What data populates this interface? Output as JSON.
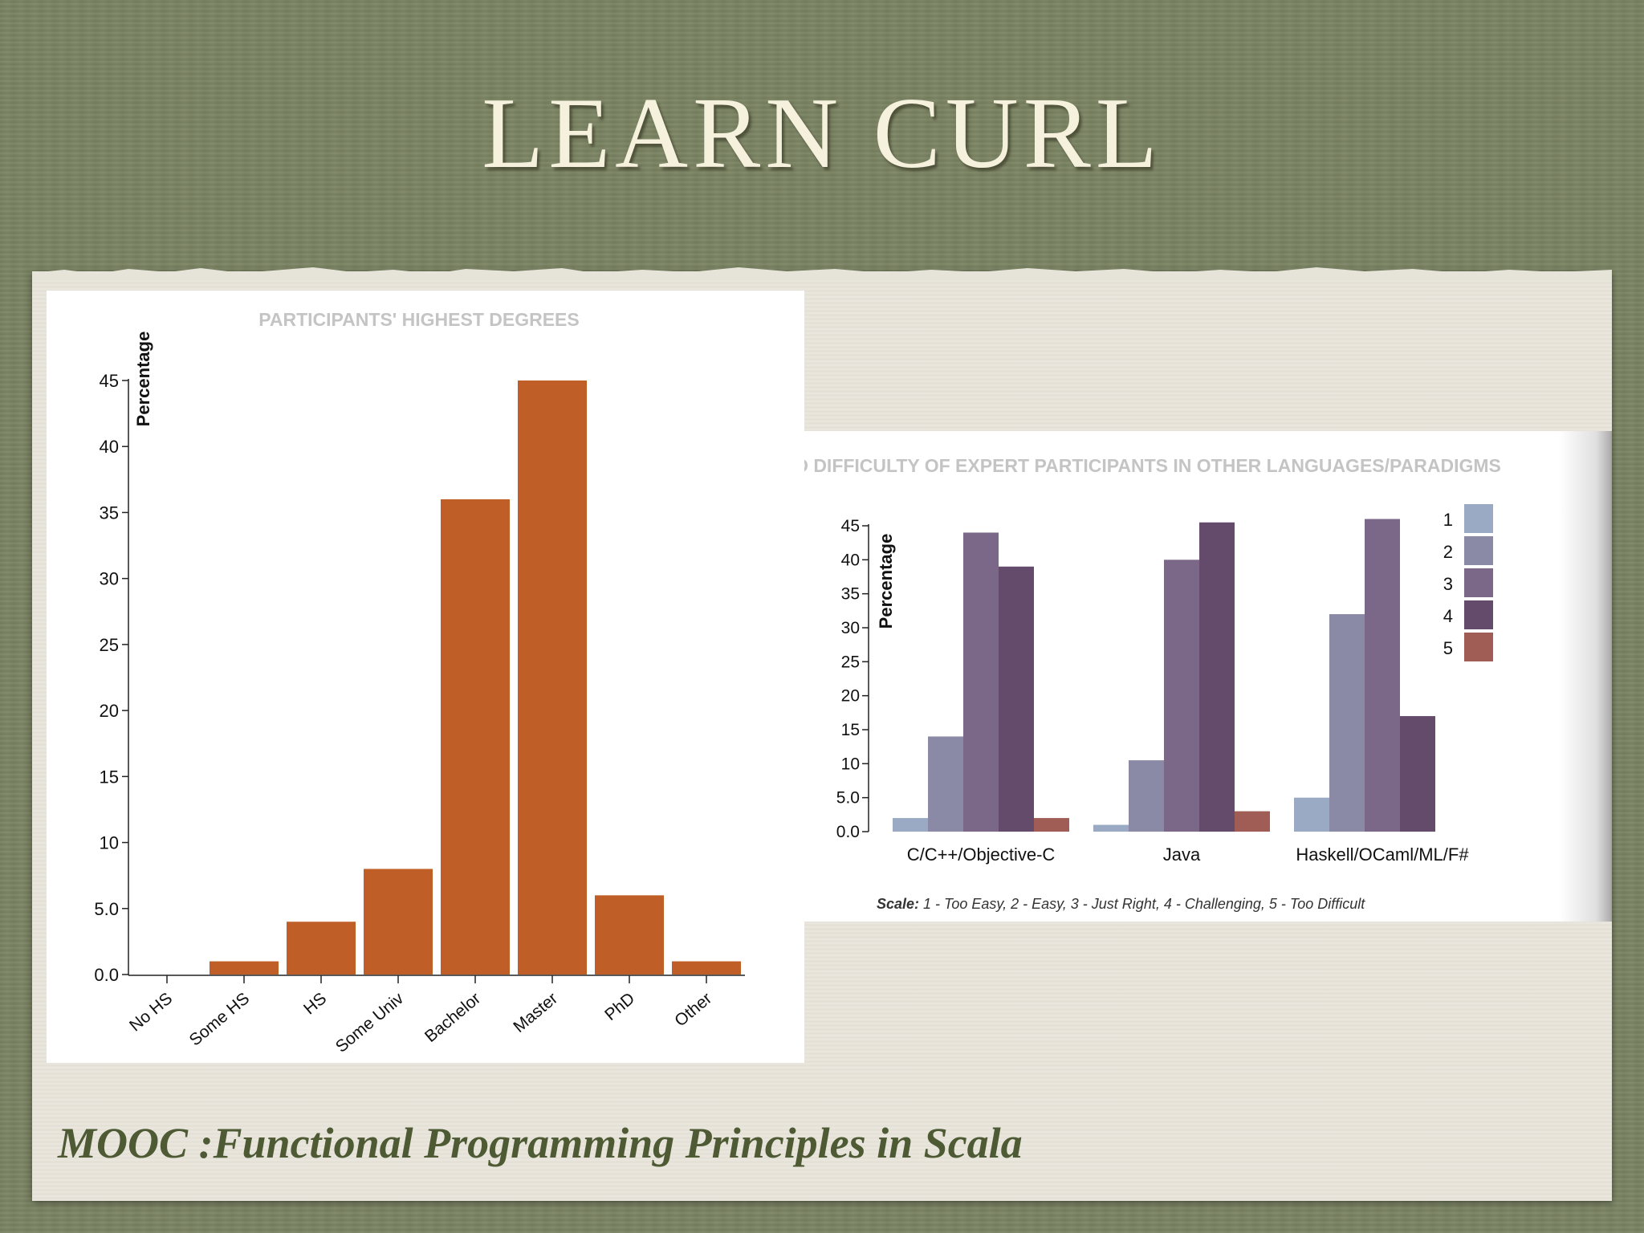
{
  "slide": {
    "title": "LEARN CURL",
    "caption": "MOOC :Functional Programming Principles in Scala"
  },
  "colors": {
    "background": "#7b8463",
    "paper": "#e6e3d9",
    "title_text": "#f5f1dd",
    "caption_text": "#4d5a34",
    "bar_orange": "#c05e28"
  },
  "chart_data": [
    {
      "type": "bar",
      "title": "PARTICIPANTS' HIGHEST DEGREES",
      "xlabel": "",
      "ylabel": "Percentage",
      "categories": [
        "No HS",
        "Some HS",
        "HS",
        "Some Univ",
        "Bachelor",
        "Master",
        "PhD",
        "Other"
      ],
      "values": [
        0,
        1,
        4,
        8,
        36,
        45,
        6,
        1
      ],
      "ylim": [
        0,
        45
      ],
      "yticks": [
        "0.0",
        "5.0",
        "10",
        "15",
        "20",
        "25",
        "30",
        "35",
        "40",
        "45"
      ],
      "color": "#c05e28",
      "grid": false
    },
    {
      "type": "bar",
      "title": "PERCEIVED DIFFICULTY OF EXPERT PARTICIPANTS IN OTHER LANGUAGES/PARADIGMS",
      "xlabel": "",
      "ylabel": "Percentage",
      "categories": [
        "C/C++/Objective-C",
        "Java",
        "Haskell/OCaml/ML/F#"
      ],
      "series": [
        {
          "name": "1",
          "color": "#9aaac4",
          "values": [
            2,
            1,
            5
          ]
        },
        {
          "name": "2",
          "color": "#8a89a6",
          "values": [
            14,
            10.5,
            32
          ]
        },
        {
          "name": "3",
          "color": "#7b6888",
          "values": [
            44,
            40,
            46
          ]
        },
        {
          "name": "4",
          "color": "#644b6c",
          "values": [
            39,
            45.5,
            17
          ]
        },
        {
          "name": "5",
          "color": "#a05d56",
          "values": [
            2,
            3,
            0
          ]
        }
      ],
      "ylim": [
        0,
        45
      ],
      "yticks": [
        "0.0",
        "5.0",
        "10",
        "15",
        "20",
        "25",
        "30",
        "35",
        "40",
        "45"
      ],
      "legend_position": "top-right",
      "note_label": "Scale:",
      "note_text": " 1 - Too Easy, 2 - Easy, 3 - Just Right, 4 - Challenging, 5 - Too Difficult",
      "grid": false
    }
  ]
}
